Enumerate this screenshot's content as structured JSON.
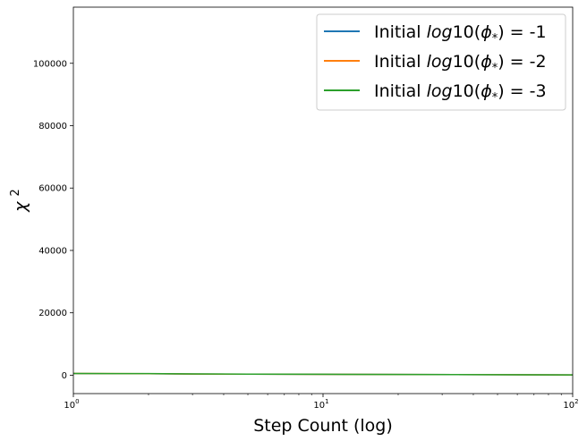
{
  "chart_data": {
    "type": "line",
    "xlabel": "Step Count (log)",
    "ylabel": "χ",
    "ylabel_sup": "2",
    "xscale": "log",
    "xlim": [
      1,
      100
    ],
    "ylim": [
      -5900,
      118000
    ],
    "xticks": [
      {
        "value": 1,
        "base": "10",
        "exp": "0"
      },
      {
        "value": 10,
        "base": "10",
        "exp": "1"
      },
      {
        "value": 100,
        "base": "10",
        "exp": "2"
      }
    ],
    "yticks": [
      {
        "value": 0,
        "label": "0"
      },
      {
        "value": 20000,
        "label": "20000"
      },
      {
        "value": 40000,
        "label": "40000"
      },
      {
        "value": 60000,
        "label": "60000"
      },
      {
        "value": 80000,
        "label": "80000"
      },
      {
        "value": 100000,
        "label": "100000"
      }
    ],
    "grid": false,
    "legend_position": "top-right",
    "series": [
      {
        "legend_prefix": "Initial ",
        "legend_math": "log",
        "legend_mid": "10(",
        "legend_phi": "ϕ",
        "legend_sub": "*",
        "legend_suffix": ") = -1",
        "color": "#1f77b4",
        "x": [
          1,
          2,
          3,
          5,
          10,
          20,
          50,
          100
        ],
        "y": [
          520,
          480,
          380,
          320,
          270,
          220,
          150,
          80
        ]
      },
      {
        "legend_prefix": "Initial ",
        "legend_math": "log",
        "legend_mid": "10(",
        "legend_phi": "ϕ",
        "legend_sub": "*",
        "legend_suffix": ") = -2",
        "color": "#ff7f0e",
        "x": [
          1,
          2,
          3,
          5,
          10,
          20,
          50,
          100
        ],
        "y": [
          540,
          500,
          390,
          330,
          280,
          230,
          160,
          90
        ]
      },
      {
        "legend_prefix": "Initial ",
        "legend_math": "log",
        "legend_mid": "10(",
        "legend_phi": "ϕ",
        "legend_sub": "*",
        "legend_suffix": ") = -3",
        "color": "#2ca02c",
        "x": [
          1,
          2,
          3,
          5,
          10,
          20,
          50,
          100
        ],
        "y": [
          560,
          510,
          400,
          340,
          290,
          240,
          170,
          100
        ]
      }
    ]
  }
}
